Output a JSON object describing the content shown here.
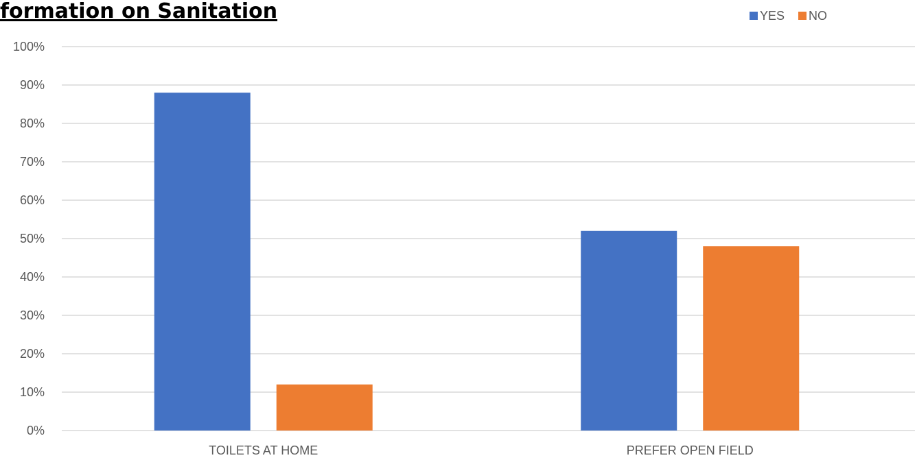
{
  "chart_data": {
    "type": "bar",
    "title": "Information on Sanitation",
    "visible_title": "formation on Sanitation",
    "xlabel": "",
    "ylabel": "",
    "categories": [
      "TOILETS AT HOME",
      "PREFER OPEN FIELD"
    ],
    "series": [
      {
        "name": "YES",
        "values": [
          0.88,
          0.52
        ],
        "color": "#4472C4"
      },
      {
        "name": "NO",
        "values": [
          0.12,
          0.48
        ],
        "color": "#ED7D31"
      }
    ],
    "ylim": [
      0,
      1
    ],
    "y_ticks": [
      "0%",
      "10%",
      "20%",
      "30%",
      "40%",
      "50%",
      "60%",
      "70%",
      "80%",
      "90%",
      "100%"
    ],
    "grid": true,
    "gridline_color": "#D9D9D9",
    "legend_position": "top-right"
  }
}
